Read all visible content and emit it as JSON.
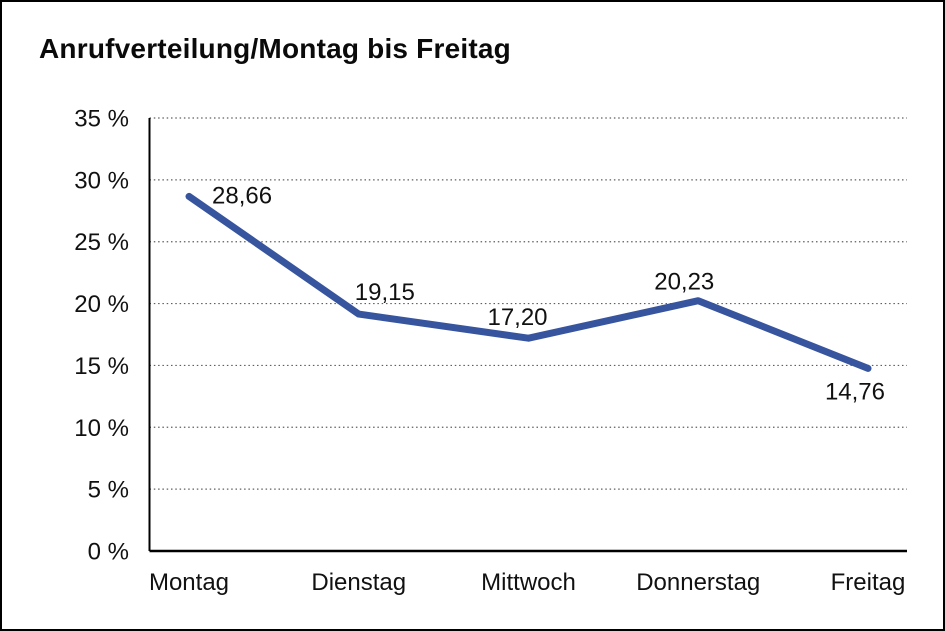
{
  "page": {
    "title": "Anrufverteilung/Montag bis Freitag"
  },
  "chart_data": {
    "type": "line",
    "title": "Anrufverteilung/Montag bis Freitag",
    "categories": [
      "Montag",
      "Dienstag",
      "Mittwoch",
      "Donnerstag",
      "Freitag"
    ],
    "series": [
      {
        "name": "Anrufverteilung",
        "values": [
          28.66,
          19.15,
          17.2,
          20.23,
          14.76
        ]
      }
    ],
    "point_labels": [
      "28,66",
      "19,15",
      "17,20",
      "20,23",
      "14,76"
    ],
    "ytick_values": [
      0,
      5,
      10,
      15,
      20,
      25,
      30,
      35
    ],
    "ytick_labels": [
      "0 %",
      "5 %",
      "10 %",
      "15 %",
      "20 %",
      "25 %",
      "30 %",
      "35 %"
    ],
    "ylim": [
      0,
      35
    ],
    "xlabel": "",
    "ylabel": "",
    "grid": "horizontal-dotted",
    "legend": "none",
    "line_color": "#37549E",
    "gridline_color": "#5f5f5f",
    "axis_color": "#000000",
    "text_color": "#111111"
  }
}
